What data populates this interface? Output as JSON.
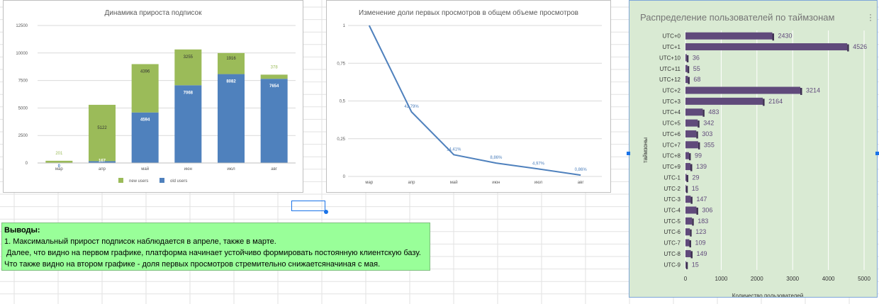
{
  "chart_data": [
    {
      "type": "bar",
      "stacked": true,
      "title": "Динамика прироста подписок",
      "categories": [
        "мар",
        "апр",
        "май",
        "июн",
        "июл",
        "авг"
      ],
      "series": [
        {
          "name": "old users",
          "color": "#4f81bd",
          "values": [
            0,
            167,
            4594,
            7068,
            8082,
            7654
          ]
        },
        {
          "name": "new users",
          "color": "#9bbb59",
          "values": [
            201,
            5122,
            4396,
            3255,
            1916,
            378
          ]
        }
      ],
      "old_labels": [
        "0",
        "167",
        "4594",
        "7068",
        "8082",
        "7654"
      ],
      "new_labels": [
        "201",
        "5122",
        "4396",
        "3255",
        "1916",
        "378"
      ],
      "yticks": [
        0,
        2500,
        5000,
        7500,
        10000,
        12500
      ],
      "ytick_labels": [
        "0",
        "2500",
        "5000",
        "7500",
        "10000",
        "12500"
      ],
      "ylim": [
        0,
        12500
      ],
      "legend": [
        "new users",
        "old users"
      ],
      "legend_position": "bottom"
    },
    {
      "type": "line",
      "title": "Изменение доли первых просмотров в общем объеме просмотров",
      "categories": [
        "мар",
        "апр",
        "май",
        "июн",
        "июл",
        "авг"
      ],
      "values": [
        1,
        0.4279,
        0.1441,
        0.0886,
        0.0497,
        0.0086
      ],
      "value_labels": [
        "",
        "42,79%",
        "14,41%",
        "8,86%",
        "4,97%",
        "0,86%"
      ],
      "yticks": [
        0,
        0.25,
        0.5,
        0.75,
        1
      ],
      "ytick_labels": [
        "0",
        "0,25",
        "0,5",
        "0,75",
        "1"
      ],
      "ylim": [
        0,
        1
      ],
      "color": "#4f81bd"
    },
    {
      "type": "bar",
      "orientation": "horizontal",
      "title": "Распределение пользователей по таймзонам",
      "ylabel": "таймзоны",
      "xlabel": "Количество пользователей",
      "categories": [
        "UTC+0",
        "UTC+1",
        "UTC+10",
        "UTC+11",
        "UTC+12",
        "UTC+2",
        "UTC+3",
        "UTC+4",
        "UTC+5",
        "UTC+6",
        "UTC+7",
        "UTC+8",
        "UTC+9",
        "UTC-1",
        "UTC-2",
        "UTC-3",
        "UTC-4",
        "UTC-5",
        "UTC-6",
        "UTC-7",
        "UTC-8",
        "UTC-9"
      ],
      "values": [
        2430,
        4526,
        36,
        55,
        68,
        3214,
        2164,
        483,
        342,
        303,
        355,
        99,
        139,
        29,
        15,
        147,
        306,
        183,
        123,
        109,
        149,
        15
      ],
      "value_labels": [
        "2430",
        "4526",
        "36",
        "55",
        "68",
        "3214",
        "2164",
        "483",
        "342",
        "303",
        "355",
        "99",
        "139",
        "29",
        "15",
        "147",
        "306",
        "183",
        "123",
        "109",
        "149",
        "15"
      ],
      "xticks": [
        0,
        1000,
        2000,
        3000,
        4000,
        5000
      ],
      "xtick_labels": [
        "0",
        "1000",
        "2000",
        "3000",
        "4000",
        "5000"
      ],
      "xlim": [
        0,
        5000
      ],
      "color": "#604a7b",
      "background": "#d9ead3"
    }
  ],
  "conclusions": {
    "heading": "Выводы:",
    "line1": "1. Максимальный прирост подписок наблюдается в апреле, также в марте.",
    "line2": " Далее, что видно на первом графике, платформа начинает устойчиво формировать постоянную клиентскую базу.",
    "line3": "Что также видно на втором графике - доля первых просмотров стремительно снижаетсяначиная с мая."
  }
}
